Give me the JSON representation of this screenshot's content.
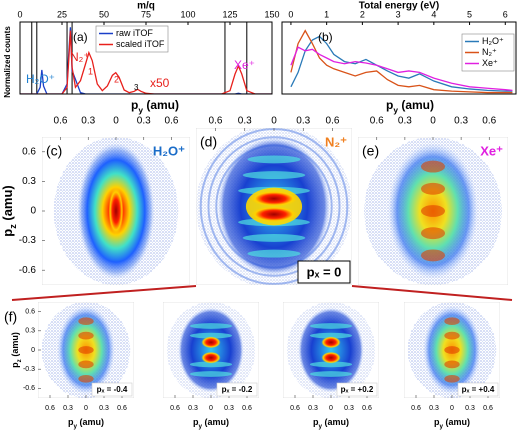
{
  "chart_data": [
    {
      "type": "line",
      "x_label": "m/q",
      "y_label": "Normalized counts",
      "xlim": [
        0,
        150
      ],
      "xticks": [
        0,
        25,
        50,
        75,
        100,
        125,
        150
      ],
      "ylim": [
        0,
        1.08
      ],
      "x": [
        0,
        10,
        12,
        13,
        14,
        16,
        25,
        28,
        29,
        30,
        31,
        33,
        36,
        39,
        41,
        43,
        46,
        49,
        52,
        55,
        57,
        59,
        62,
        65,
        68,
        70,
        72,
        75,
        80,
        100,
        120,
        125,
        128,
        130,
        132,
        135,
        140,
        150
      ],
      "series": [
        {
          "name": "raw iTOF",
          "color": "#1a3fc8",
          "values": [
            0,
            0,
            0.1,
            0.36,
            0.12,
            0,
            0,
            0.15,
            0.6,
            1.0,
            0.35,
            0.22,
            0.02,
            0,
            0,
            0,
            0,
            0,
            0,
            0,
            0,
            0,
            0,
            0,
            0,
            0,
            0,
            0,
            0,
            0,
            0,
            0,
            0,
            0.01,
            0,
            0,
            0,
            0
          ]
        },
        {
          "name": "scaled iTOF",
          "color": "#e8201c",
          "values": [
            0,
            0,
            0,
            0,
            0,
            0,
            0,
            0.1,
            0.5,
            0.95,
            0.4,
            0.1,
            0.2,
            0.45,
            0.62,
            0.5,
            0.15,
            0.05,
            0.12,
            0.28,
            0.32,
            0.25,
            0.06,
            0.02,
            0.04,
            0.07,
            0.04,
            0.01,
            0,
            0,
            0,
            0.05,
            0.3,
            0.42,
            0.3,
            0.05,
            0,
            0
          ]
        }
      ],
      "vlines": [
        7,
        10,
        28,
        31,
        122,
        135
      ],
      "annotations": [
        "(a)",
        "H₂O⁺",
        "N₂⁺",
        "1",
        "2",
        "3",
        "x50",
        "Xe⁺"
      ]
    },
    {
      "type": "line",
      "x_label": "Total energy (eV)",
      "xlim": [
        -0.25,
        6.3
      ],
      "xticks": [
        0,
        1,
        2,
        3,
        4,
        5,
        6
      ],
      "ylim": [
        0,
        1
      ],
      "x": [
        0,
        0.2,
        0.4,
        0.6,
        0.8,
        1.0,
        1.2,
        1.5,
        1.8,
        2.1,
        2.4,
        2.7,
        3.0,
        3.3,
        3.6,
        4.0,
        4.5,
        5,
        5.5,
        6,
        6.2
      ],
      "series": [
        {
          "name": "H₂O⁺",
          "color": "#2a7ab8",
          "values": [
            0.1,
            0.3,
            0.6,
            0.75,
            0.8,
            0.7,
            0.55,
            0.45,
            0.42,
            0.48,
            0.4,
            0.32,
            0.25,
            0.22,
            0.28,
            0.18,
            0.1,
            0.07,
            0.05,
            0.04,
            0.04
          ]
        },
        {
          "name": "N₂⁺",
          "color": "#d95319",
          "values": [
            0.3,
            0.7,
            0.88,
            0.7,
            0.5,
            0.4,
            0.35,
            0.3,
            0.25,
            0.3,
            0.32,
            0.2,
            0.12,
            0.1,
            0.12,
            0.06,
            0.04,
            0.03,
            0.02,
            0.02,
            0.02
          ]
        },
        {
          "name": "Xe⁺",
          "color": "#e020e0",
          "values": [
            0.4,
            0.65,
            0.6,
            0.62,
            0.55,
            0.5,
            0.45,
            0.42,
            0.45,
            0.43,
            0.4,
            0.35,
            0.3,
            0.32,
            0.3,
            0.22,
            0.15,
            0.1,
            0.08,
            0.06,
            0.05
          ]
        }
      ],
      "annotations": [
        "(b)"
      ]
    }
  ],
  "images": {
    "x_label": {
      "base": "p",
      "sub": "y",
      "rest": " (amu)"
    },
    "y_label": {
      "base": "p",
      "sub": "z",
      "rest": " (amu)"
    },
    "xlim": [
      -0.8,
      0.8
    ],
    "xticks": [
      {
        "value": -0.6,
        "label": "0.6"
      },
      {
        "value": -0.3,
        "label": "0.3"
      },
      0,
      0.3,
      0.6
    ],
    "ylim": [
      -0.75,
      0.75
    ],
    "yticks": [
      0.6,
      0.3,
      0,
      -0.3,
      -0.6
    ],
    "top": [
      {
        "label": "(c)",
        "ion": "H₂O⁺"
      },
      {
        "label": "(d)",
        "ion": "N₂⁺",
        "px_label": "pₓ = 0"
      },
      {
        "label": "(e)",
        "ion": "Xe⁺"
      }
    ],
    "bottom": {
      "label": "(f)",
      "panels": [
        {
          "px_label": "pₓ = -0.4"
        },
        {
          "px_label": "pₓ = -0.2"
        },
        {
          "px_label": "pₓ = +0.2"
        },
        {
          "px_label": "pₓ = +0.4"
        }
      ]
    }
  }
}
